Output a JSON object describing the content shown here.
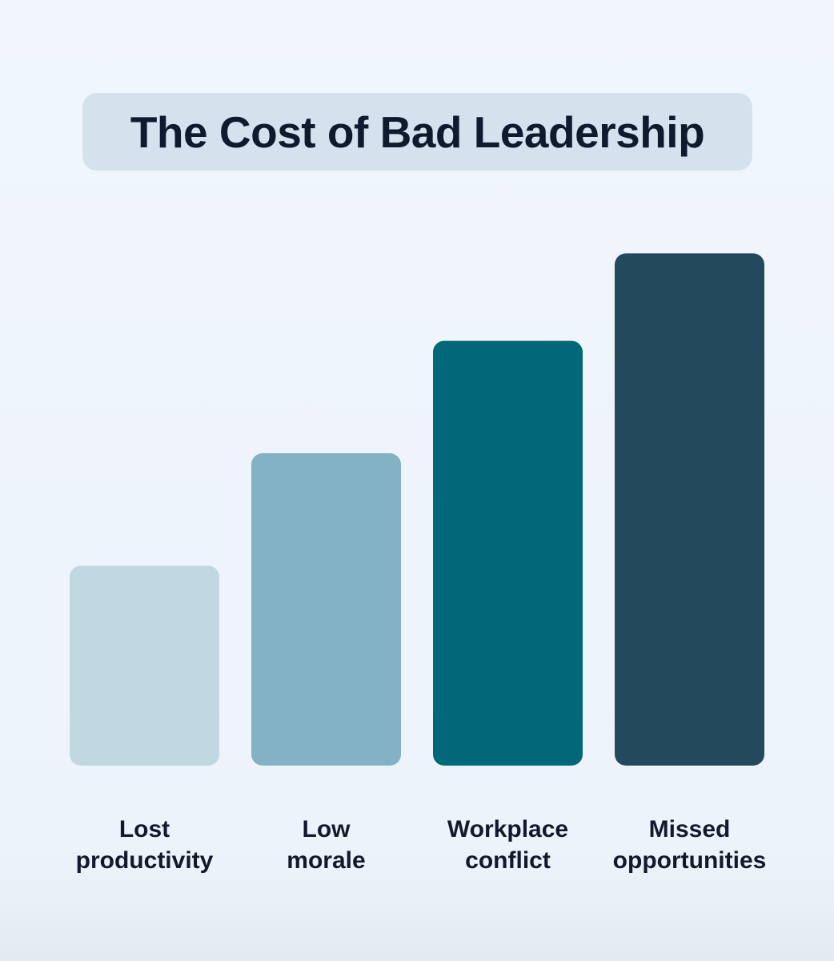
{
  "chart_data": {
    "type": "bar",
    "title": "The Cost of Bad Leadership",
    "categories": [
      [
        "Lost",
        "productivity"
      ],
      [
        "Low",
        "morale"
      ],
      [
        "Workplace",
        "conflict"
      ],
      [
        "Missed",
        "opportunities"
      ]
    ],
    "values": [
      2.4,
      3.75,
      5.1,
      6.15
    ],
    "colors": [
      "#c1d8e3",
      "#82b2c4",
      "#006878",
      "#234a5c"
    ],
    "ylim": [
      0,
      6.5
    ],
    "xlabel": "",
    "ylabel": "",
    "grid": false,
    "legend": "none"
  },
  "theme": {
    "background": "#eef4fb",
    "title_pill": "#d4e2ed",
    "text": "#111a2c"
  }
}
